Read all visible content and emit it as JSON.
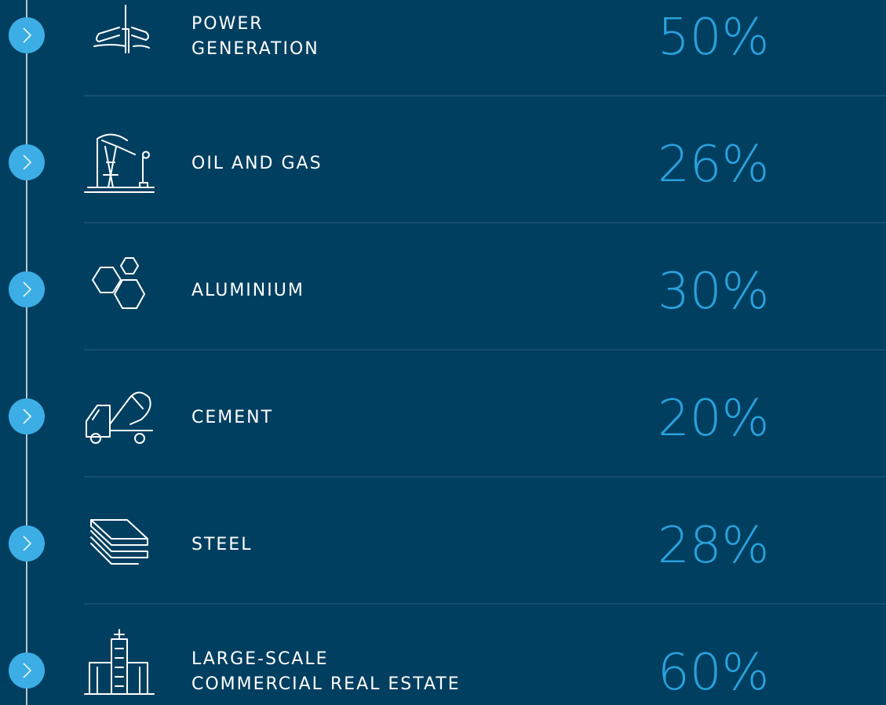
{
  "items": [
    {
      "label": [
        "POWER",
        "GENERATION"
      ],
      "value": "50%"
    },
    {
      "label": [
        "OIL AND GAS"
      ],
      "value": "26%"
    },
    {
      "label": [
        "ALUMINIUM"
      ],
      "value": "30%"
    },
    {
      "label": [
        "CEMENT"
      ],
      "value": "20%"
    },
    {
      "label": [
        "STEEL"
      ],
      "value": "28%"
    },
    {
      "label": [
        "LARGE-SCALE",
        "COMMERCIAL REAL ESTATE"
      ],
      "value": "60%"
    }
  ]
}
